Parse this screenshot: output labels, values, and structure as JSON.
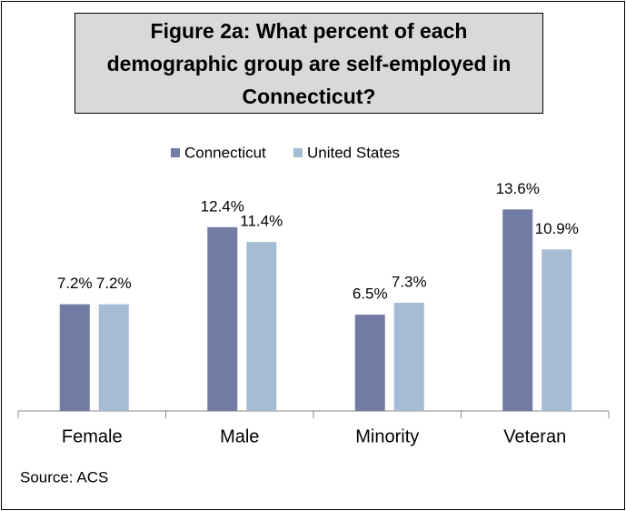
{
  "chart_data": {
    "type": "bar",
    "title": "Figure 2a: What percent of each demographic group are self-employed in Connecticut?",
    "source": "Source: ACS",
    "categories": [
      "Female",
      "Male",
      "Minority",
      "Veteran"
    ],
    "series": [
      {
        "name": "Connecticut",
        "color": "#717ba3",
        "values": [
          7.2,
          12.4,
          6.5,
          13.6
        ],
        "value_labels": [
          "7.2%",
          "12.4%",
          "6.5%",
          "13.6%"
        ]
      },
      {
        "name": "United States",
        "color": "#a5bcd4",
        "values": [
          7.2,
          11.4,
          7.3,
          10.9
        ],
        "value_labels": [
          "7.2%",
          "11.4%",
          "7.3%",
          "10.9%"
        ]
      }
    ],
    "legend": "top"
  }
}
